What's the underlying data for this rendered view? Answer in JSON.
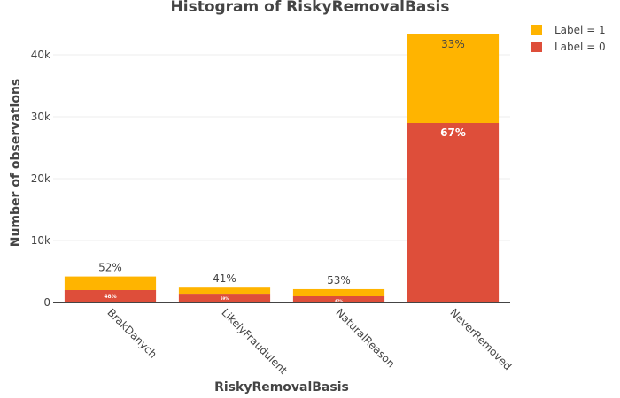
{
  "chart_data": {
    "type": "bar",
    "stacked": true,
    "title": "Histogram of RiskyRemovalBasis",
    "xlabel": "RiskyRemovalBasis",
    "ylabel": "Number of observations",
    "categories": [
      "BrakDanych",
      "LikelyFraudulent",
      "NaturalReason",
      "NeverRemoved"
    ],
    "ylim": [
      0,
      45000
    ],
    "yticks": [
      0,
      10000,
      20000,
      30000,
      40000
    ],
    "ytick_labels": [
      "0",
      "10k",
      "20k",
      "30k",
      "40k"
    ],
    "series": [
      {
        "name": "Label = 0",
        "color": "#de4e3a",
        "values": [
          2000,
          1420,
          1000,
          29000
        ],
        "labels": [
          "48%",
          "59%",
          "47%",
          "67%"
        ]
      },
      {
        "name": "Label = 1",
        "color": "#ffb400",
        "values": [
          2200,
          980,
          1150,
          14300
        ],
        "labels": [
          "52%",
          "41%",
          "53%",
          "33%"
        ]
      }
    ],
    "grid": true,
    "legend_position": "top-right"
  }
}
